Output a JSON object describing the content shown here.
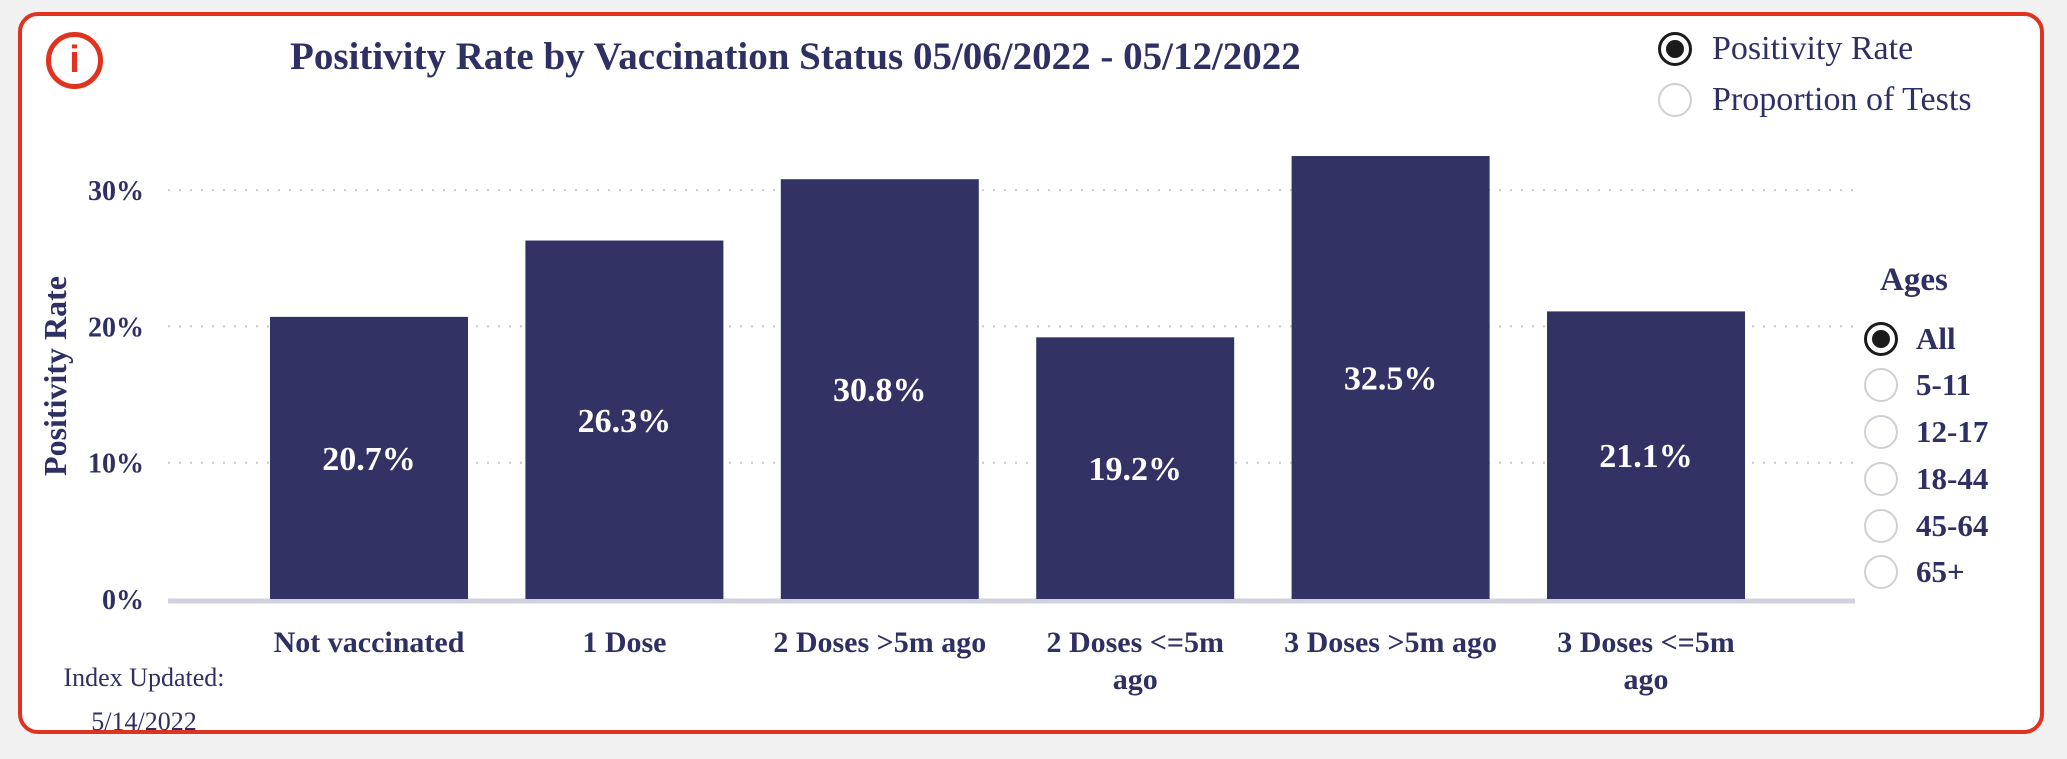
{
  "header": {
    "title": "Positivity Rate by Vaccination Status 05/06/2022 - 05/12/2022"
  },
  "metric_options": [
    {
      "label": "Positivity Rate",
      "selected": true
    },
    {
      "label": "Proportion of Tests",
      "selected": false
    }
  ],
  "ages": {
    "title": "Ages",
    "options": [
      {
        "label": "All",
        "selected": true
      },
      {
        "label": "5-11",
        "selected": false
      },
      {
        "label": "12-17",
        "selected": false
      },
      {
        "label": "18-44",
        "selected": false
      },
      {
        "label": "45-64",
        "selected": false
      },
      {
        "label": "65+",
        "selected": false
      }
    ]
  },
  "footer": {
    "updated_label": "Index Updated:",
    "updated_date": "5/14/2022"
  },
  "colors": {
    "bar": "#323264",
    "frame": "#e0321f",
    "text": "#2e2f62"
  },
  "icons": {
    "info": "info-icon"
  },
  "chart_data": {
    "type": "bar",
    "categories": [
      [
        "Not vaccinated"
      ],
      [
        "1 Dose"
      ],
      [
        "2 Doses >5m ago"
      ],
      [
        "2 Doses <=5m",
        "ago"
      ],
      [
        "3 Doses >5m ago"
      ],
      [
        "3 Doses <=5m",
        "ago"
      ]
    ],
    "values": [
      20.7,
      26.3,
      30.8,
      19.2,
      32.5,
      21.1
    ],
    "data_labels": [
      "20.7%",
      "26.3%",
      "30.8%",
      "19.2%",
      "32.5%",
      "21.1%"
    ],
    "ylabel": "Positivity Rate",
    "yticks": [
      0,
      10,
      20,
      30
    ],
    "ytick_labels": [
      "0%",
      "10%",
      "20%",
      "30%"
    ],
    "ylim": [
      0,
      33
    ],
    "grid": true
  }
}
